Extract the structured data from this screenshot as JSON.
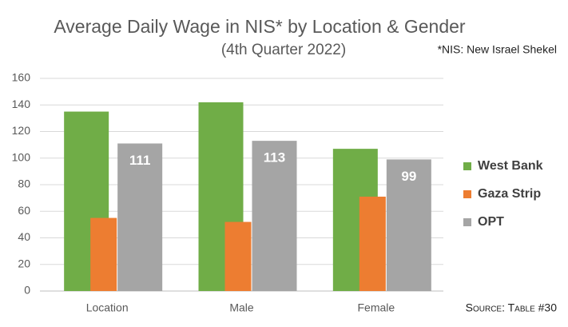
{
  "chart_data": {
    "type": "bar",
    "title": "Average Daily Wage in NIS* by Location & Gender",
    "subtitle": "(4th Quarter 2022)",
    "note": "*NIS: New Israel Shekel",
    "source": "Source: Table #30",
    "categories": [
      "Location",
      "Male",
      "Female"
    ],
    "series": [
      {
        "name": "West Bank",
        "color": "#70ad47",
        "values": [
          135,
          142,
          107
        ]
      },
      {
        "name": "Gaza Strip",
        "color": "#ed7d31",
        "values": [
          55,
          52,
          71
        ]
      },
      {
        "name": "OPT",
        "color": "#a5a5a5",
        "values": [
          111,
          113,
          99
        ],
        "show_labels": true
      }
    ],
    "ylim": [
      0,
      160
    ],
    "yticks": [
      0,
      20,
      40,
      60,
      80,
      100,
      120,
      140,
      160
    ],
    "grid": true,
    "legend": "right"
  }
}
